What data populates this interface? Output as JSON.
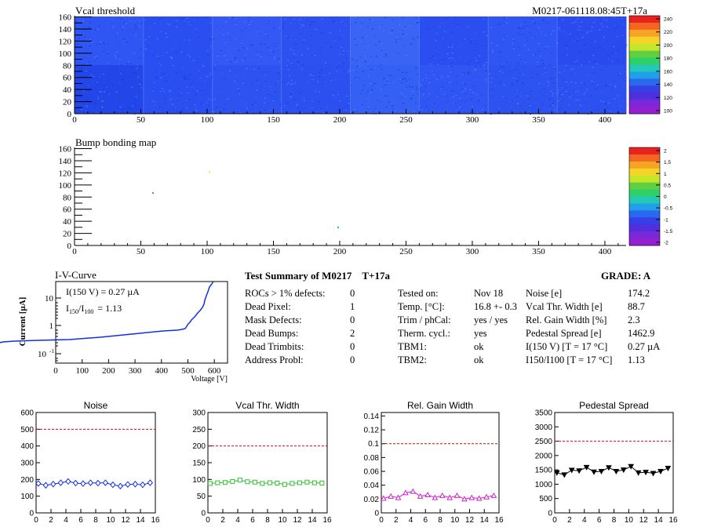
{
  "header": {
    "map1_title": "Vcal threshold",
    "module_id": "M0217-061118.08:45T+17a",
    "map2_title": "Bump bonding map"
  },
  "maps": {
    "x_ticks": [
      "0",
      "50",
      "100",
      "150",
      "200",
      "250",
      "300",
      "350",
      "400"
    ],
    "y_ticks": [
      "0",
      "20",
      "40",
      "60",
      "80",
      "100",
      "120",
      "140",
      "160"
    ],
    "palette_1_ticks": [
      "240",
      "220",
      "200",
      "180",
      "160",
      "140",
      "120",
      "100"
    ],
    "palette_2_ticks": [
      "2",
      "1.5",
      "1",
      "0.5",
      "0",
      "-0.5",
      "-1",
      "-1.5",
      "-2"
    ]
  },
  "iv": {
    "title": "I-V-Curve",
    "ylabel": "Current [µA]",
    "xlabel": "Voltage [V]",
    "x_ticks": [
      "0",
      "100",
      "200",
      "300",
      "400",
      "500",
      "600"
    ],
    "y_tick_main": [
      "10",
      "1",
      "10"
    ],
    "y_tick_exp": [
      "-1"
    ],
    "annot1": "I(150 V) = 0.27 µA",
    "annot2_a": "I",
    "annot2_sub1": "150",
    "annot2_b": "/I",
    "annot2_sub2": "100",
    "annot2_c": "= 1.13"
  },
  "summary": {
    "title": "Test Summary of M0217",
    "title_suffix": "T+17a",
    "grade": "GRADE:  A",
    "col1_labels": [
      "ROCs > 1% defects:",
      "Dead Pixel:",
      "Mask Defects:",
      "Dead Bumps:",
      "Dead Trimbits:",
      "Address Probl:"
    ],
    "col1_values": [
      "0",
      "1",
      "0",
      "2",
      "0",
      "0"
    ],
    "col2_labels": [
      "Tested on:",
      "Temp. [°C]:",
      "Trim / phCal:",
      "Therm. cycl.:",
      "TBM1:",
      "TBM2:"
    ],
    "col2_values": [
      "Nov 18",
      "16.8 +- 0.3",
      "yes / yes",
      "yes",
      "ok",
      "ok"
    ],
    "col3_labels": [
      "Noise [e]",
      "Vcal Thr. Width [e]",
      "Rel. Gain Width [%]",
      "Pedestal Spread [e]",
      "I(150 V) [T = 17 °C]",
      "I150/I100  [T = 17 °C]"
    ],
    "col3_values": [
      "174.2",
      "88.7",
      "2.3",
      "1462.9",
      "0.27 µA",
      "1.13"
    ]
  },
  "chart_data": [
    {
      "type": "line",
      "title": "Noise",
      "x": [
        0,
        1,
        2,
        3,
        4,
        5,
        6,
        7,
        8,
        9,
        10,
        11,
        12,
        13,
        14,
        15
      ],
      "x_ticks": [
        "0",
        "2",
        "4",
        "6",
        "8",
        "10",
        "12",
        "14",
        "16"
      ],
      "y_ticks": [
        "0",
        "100",
        "200",
        "300",
        "400",
        "500",
        "600"
      ],
      "ylim": [
        0,
        600
      ],
      "xlim": [
        0,
        16
      ],
      "series": [
        {
          "values": [
            176,
            165,
            172,
            180,
            188,
            178,
            175,
            180,
            178,
            180,
            168,
            160,
            170,
            172,
            168,
            180
          ]
        }
      ],
      "threshold": 500,
      "color": "#1030e0",
      "marker": "diamond"
    },
    {
      "type": "line",
      "title": "Vcal Thr. Width",
      "x": [
        0,
        1,
        2,
        3,
        4,
        5,
        6,
        7,
        8,
        9,
        10,
        11,
        12,
        13,
        14,
        15
      ],
      "x_ticks": [
        "0",
        "2",
        "4",
        "6",
        "8",
        "10",
        "12",
        "14",
        "16"
      ],
      "y_ticks": [
        "0",
        "50",
        "100",
        "150",
        "200",
        "250",
        "300"
      ],
      "ylim": [
        0,
        300
      ],
      "xlim": [
        0,
        16
      ],
      "series": [
        {
          "values": [
            88,
            90,
            91,
            94,
            98,
            93,
            92,
            88,
            90,
            89,
            85,
            88,
            90,
            92,
            90,
            89
          ]
        }
      ],
      "threshold": 200,
      "color": "#30c030",
      "marker": "square"
    },
    {
      "type": "line",
      "title": "Rel. Gain Width",
      "x": [
        0,
        1,
        2,
        3,
        4,
        5,
        6,
        7,
        8,
        9,
        10,
        11,
        12,
        13,
        14,
        15
      ],
      "x_ticks": [
        "0",
        "2",
        "4",
        "6",
        "8",
        "10",
        "12",
        "14",
        "16"
      ],
      "y_ticks": [
        "0",
        "0.02",
        "0.04",
        "0.06",
        "0.08",
        "0.1",
        "0.12",
        "0.14"
      ],
      "ylim": [
        0,
        0.145
      ],
      "xlim": [
        0,
        16
      ],
      "series": [
        {
          "values": [
            0.021,
            0.024,
            0.022,
            0.029,
            0.031,
            0.024,
            0.026,
            0.022,
            0.025,
            0.022,
            0.025,
            0.02,
            0.022,
            0.021,
            0.023,
            0.025
          ]
        }
      ],
      "threshold": 0.1,
      "color": "#d020d0",
      "marker": "triangle-up"
    },
    {
      "type": "line",
      "title": "Pedestal Spread",
      "x": [
        0,
        1,
        2,
        3,
        4,
        5,
        6,
        7,
        8,
        9,
        10,
        11,
        12,
        13,
        14,
        15
      ],
      "x_ticks": [
        "0",
        "2",
        "4",
        "6",
        "8",
        "10",
        "12",
        "14",
        "16"
      ],
      "y_ticks": [
        "0",
        "500",
        "1000",
        "1500",
        "2000",
        "2500",
        "3000",
        "3500"
      ],
      "ylim": [
        0,
        3500
      ],
      "xlim": [
        0,
        16
      ],
      "series": [
        {
          "values": [
            1400,
            1330,
            1490,
            1470,
            1590,
            1430,
            1450,
            1580,
            1450,
            1500,
            1620,
            1400,
            1420,
            1380,
            1450,
            1560
          ]
        }
      ],
      "threshold": 2500,
      "color": "#000000",
      "marker": "triangle-down"
    }
  ]
}
